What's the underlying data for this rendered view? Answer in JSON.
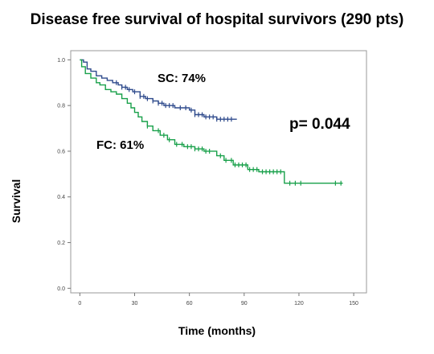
{
  "chart_data": {
    "type": "line",
    "title": "Disease free survival of hospital survivors (290 pts)",
    "xlabel": "Time (months)",
    "ylabel": "Survival",
    "xlim": [
      -5,
      157
    ],
    "ylim": [
      -0.02,
      1.04
    ],
    "x_ticks": [
      0,
      30,
      60,
      90,
      120,
      150
    ],
    "y_ticks": [
      0.0,
      0.2,
      0.4,
      0.6,
      0.8,
      1.0
    ],
    "x_tick_labels": [
      "0",
      "30",
      "60",
      "90",
      "120",
      "150"
    ],
    "y_tick_labels": [
      "0.0",
      "0.2",
      "0.4",
      "0.6",
      "0.8",
      "1.0"
    ],
    "series": [
      {
        "name": "SC",
        "color": "#2e4a8c",
        "steps": [
          [
            0,
            1.0
          ],
          [
            2,
            0.99
          ],
          [
            4,
            0.96
          ],
          [
            6,
            0.95
          ],
          [
            9,
            0.93
          ],
          [
            12,
            0.92
          ],
          [
            15,
            0.91
          ],
          [
            18,
            0.9
          ],
          [
            21,
            0.89
          ],
          [
            23,
            0.88
          ],
          [
            26,
            0.87
          ],
          [
            29,
            0.86
          ],
          [
            33,
            0.84
          ],
          [
            36,
            0.83
          ],
          [
            40,
            0.82
          ],
          [
            43,
            0.81
          ],
          [
            46,
            0.8
          ],
          [
            52,
            0.79
          ],
          [
            60,
            0.78
          ],
          [
            63,
            0.76
          ],
          [
            68,
            0.75
          ],
          [
            75,
            0.74
          ],
          [
            86,
            0.74
          ]
        ],
        "censored": [
          20,
          23,
          25,
          27,
          30,
          33,
          35,
          37,
          40,
          43,
          45,
          47,
          49,
          51,
          55,
          58,
          61,
          63,
          65,
          67,
          69,
          71,
          73,
          75,
          77,
          79,
          81,
          83
        ]
      },
      {
        "name": "FC",
        "color": "#18a04a",
        "steps": [
          [
            0,
            1.0
          ],
          [
            1,
            0.97
          ],
          [
            3,
            0.94
          ],
          [
            6,
            0.92
          ],
          [
            9,
            0.9
          ],
          [
            11,
            0.89
          ],
          [
            14,
            0.87
          ],
          [
            17,
            0.86
          ],
          [
            20,
            0.85
          ],
          [
            23,
            0.83
          ],
          [
            26,
            0.81
          ],
          [
            28,
            0.79
          ],
          [
            30,
            0.77
          ],
          [
            32,
            0.75
          ],
          [
            34,
            0.73
          ],
          [
            37,
            0.71
          ],
          [
            40,
            0.69
          ],
          [
            44,
            0.67
          ],
          [
            48,
            0.65
          ],
          [
            52,
            0.63
          ],
          [
            57,
            0.62
          ],
          [
            63,
            0.61
          ],
          [
            68,
            0.6
          ],
          [
            75,
            0.58
          ],
          [
            79,
            0.56
          ],
          [
            84,
            0.54
          ],
          [
            92,
            0.52
          ],
          [
            98,
            0.51
          ],
          [
            112,
            0.46
          ],
          [
            144,
            0.46
          ]
        ],
        "censored": [
          37,
          43,
          46,
          49,
          53,
          56,
          59,
          61,
          63,
          65,
          67,
          69,
          71,
          77,
          80,
          83,
          85,
          87,
          89,
          91,
          93,
          95,
          97,
          100,
          102,
          104,
          106,
          108,
          110,
          115,
          118,
          121,
          140,
          143
        ]
      }
    ],
    "annotations": [
      "SC: 74%",
      "FC: 61%",
      "p= 0.044"
    ]
  }
}
